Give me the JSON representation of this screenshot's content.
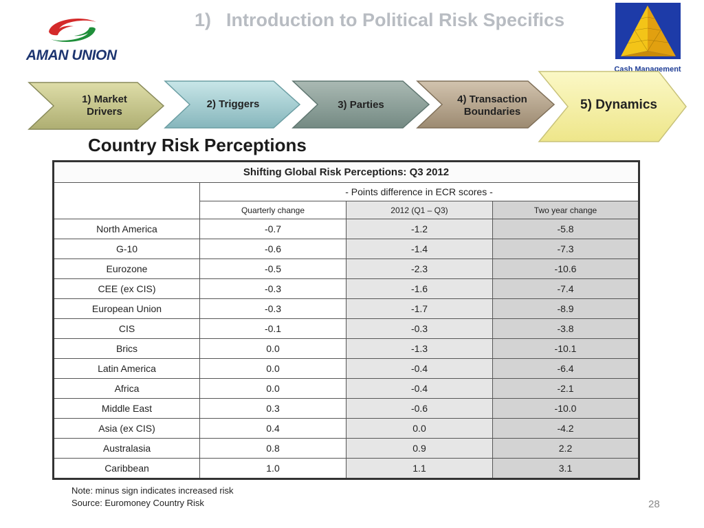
{
  "header": {
    "title_number": "1)",
    "title_text": "Introduction to Political Risk Specifics",
    "logo_text": "AMAN UNION",
    "badge_text": "Cash Management Matters"
  },
  "nav": {
    "steps": [
      {
        "label_line1": "1) Market",
        "label_line2": "Drivers"
      },
      {
        "label_line1": "2) Triggers",
        "label_line2": ""
      },
      {
        "label_line1": "3) Parties",
        "label_line2": ""
      },
      {
        "label_line1": "4) Transaction",
        "label_line2": "Boundaries"
      },
      {
        "label_line1": "5) Dynamics",
        "label_line2": ""
      }
    ]
  },
  "section_heading": "Country Risk Perceptions",
  "table": {
    "title": "Shifting Global Risk Perceptions: Q3 2012",
    "subtitle": "- Points difference in ECR scores -",
    "columns": [
      "Quarterly change",
      "2012 (Q1 – Q3)",
      "Two year change"
    ],
    "rows": [
      {
        "region": "North America",
        "quarterly": "-0.7",
        "ytd": "-1.2",
        "two_year": "-5.8"
      },
      {
        "region": "G-10",
        "quarterly": "-0.6",
        "ytd": "-1.4",
        "two_year": "-7.3"
      },
      {
        "region": "Eurozone",
        "quarterly": "-0.5",
        "ytd": "-2.3",
        "two_year": "-10.6"
      },
      {
        "region": "CEE (ex CIS)",
        "quarterly": "-0.3",
        "ytd": "-1.6",
        "two_year": "-7.4"
      },
      {
        "region": "European Union",
        "quarterly": "-0.3",
        "ytd": "-1.7",
        "two_year": "-8.9"
      },
      {
        "region": "CIS",
        "quarterly": "-0.1",
        "ytd": "-0.3",
        "two_year": "-3.8"
      },
      {
        "region": "Brics",
        "quarterly": "0.0",
        "ytd": "-1.3",
        "two_year": "-10.1"
      },
      {
        "region": "Latin America",
        "quarterly": "0.0",
        "ytd": "-0.4",
        "two_year": "-6.4"
      },
      {
        "region": "Africa",
        "quarterly": "0.0",
        "ytd": "-0.4",
        "two_year": "-2.1"
      },
      {
        "region": "Middle East",
        "quarterly": "0.3",
        "ytd": "-0.6",
        "two_year": "-10.0"
      },
      {
        "region": "Asia (ex CIS)",
        "quarterly": "0.4",
        "ytd": "0.0",
        "two_year": "-4.2"
      },
      {
        "region": "Australasia",
        "quarterly": "0.8",
        "ytd": "0.9",
        "two_year": "2.2"
      },
      {
        "region": "Caribbean",
        "quarterly": "1.0",
        "ytd": "1.1",
        "two_year": "3.1"
      }
    ]
  },
  "footnote": {
    "note": "Note: minus sign indicates increased risk",
    "source": "Source: Euromoney Country Risk"
  },
  "page_number": "28",
  "colors": {
    "title_gray": "#b8bcc2",
    "logo_red": "#d42a2a",
    "logo_green": "#1f8f3a",
    "logo_navy": "#1d3570",
    "chevron_olive": "#c6c58c",
    "chevron_teal": "#a8d0d4",
    "chevron_slate": "#8fa39c",
    "chevron_brown": "#b7a58e",
    "chevron_yellow": "#f6f1a6"
  }
}
